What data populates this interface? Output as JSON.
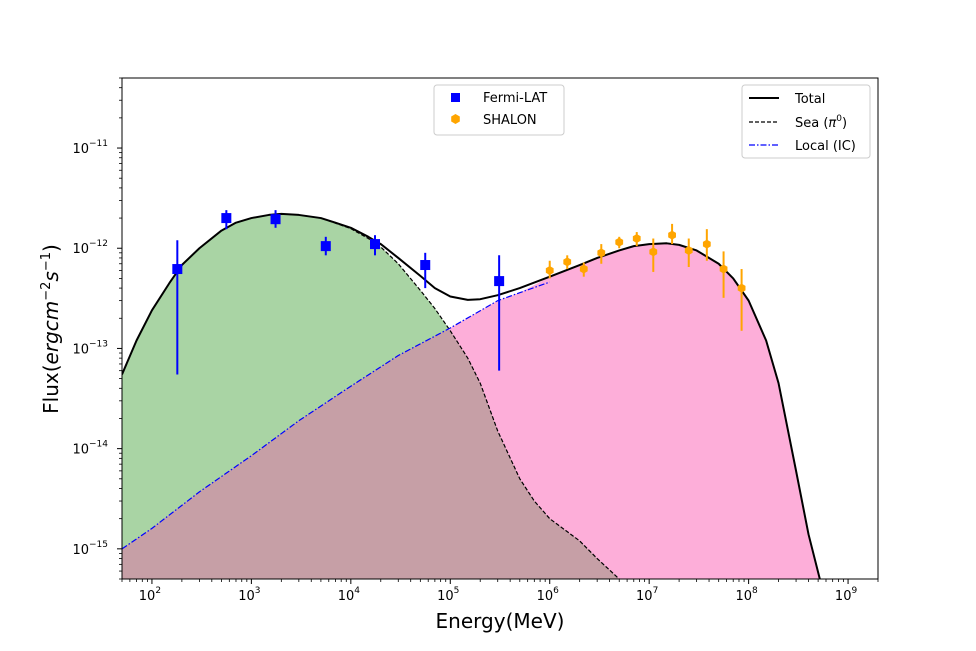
{
  "chart_data": {
    "type": "line",
    "x_scale": "log",
    "y_scale": "log",
    "xlim": [
      50,
      2000000000.0
    ],
    "ylim": [
      5e-16,
      5e-11
    ],
    "xlabel": {
      "base": "Energy",
      "unit": "(MeV)"
    },
    "ylabel": {
      "base": "Flux",
      "unit_open": "(",
      "unit_italic": "ergcm",
      "sup1": "−2",
      "s": "s",
      "sup2": "−1",
      "unit_close": ")"
    },
    "x_ticks": [
      {
        "value": 100,
        "base": "10",
        "exp": "2"
      },
      {
        "value": 1000,
        "base": "10",
        "exp": "3"
      },
      {
        "value": 10000,
        "base": "10",
        "exp": "4"
      },
      {
        "value": 100000,
        "base": "10",
        "exp": "5"
      },
      {
        "value": 1000000,
        "base": "10",
        "exp": "6"
      },
      {
        "value": 10000000,
        "base": "10",
        "exp": "7"
      },
      {
        "value": 100000000,
        "base": "10",
        "exp": "8"
      },
      {
        "value": 1000000000,
        "base": "10",
        "exp": "9"
      }
    ],
    "y_ticks": [
      {
        "value": 1e-15,
        "base": "10",
        "exp": "−15"
      },
      {
        "value": 1e-14,
        "base": "10",
        "exp": "−14"
      },
      {
        "value": 1e-13,
        "base": "10",
        "exp": "−13"
      },
      {
        "value": 1e-12,
        "base": "10",
        "exp": "−12"
      },
      {
        "value": 1e-11,
        "base": "10",
        "exp": "−11"
      }
    ],
    "curves": [
      {
        "name": "Total",
        "color": "#000000",
        "style": "solid",
        "points": [
          [
            50,
            5.5e-14
          ],
          [
            70,
            1.2e-13
          ],
          [
            100,
            2.4e-13
          ],
          [
            150,
            4.5e-13
          ],
          [
            200,
            6.8e-13
          ],
          [
            300,
            1e-12
          ],
          [
            500,
            1.5e-12
          ],
          [
            700,
            1.8e-12
          ],
          [
            1000,
            2e-12
          ],
          [
            1500,
            2.15e-12
          ],
          [
            2000,
            2.2e-12
          ],
          [
            3000,
            2.15e-12
          ],
          [
            5000,
            2e-12
          ],
          [
            7000,
            1.8e-12
          ],
          [
            10000,
            1.6e-12
          ],
          [
            15000,
            1.3e-12
          ],
          [
            20000,
            1.1e-12
          ],
          [
            30000,
            8e-13
          ],
          [
            50000,
            5.3e-13
          ],
          [
            70000,
            4e-13
          ],
          [
            100000,
            3.3e-13
          ],
          [
            150000,
            3.05e-13
          ],
          [
            200000,
            3.1e-13
          ],
          [
            300000,
            3.4e-13
          ],
          [
            500000,
            4e-13
          ],
          [
            1000000,
            5.2e-13
          ],
          [
            2000000,
            6.8e-13
          ],
          [
            3000000,
            8e-13
          ],
          [
            5000000,
            9.5e-13
          ],
          [
            7000000,
            1.05e-12
          ],
          [
            10000000,
            1.1e-12
          ],
          [
            15000000,
            1.12e-12
          ],
          [
            20000000,
            1.08e-12
          ],
          [
            30000000,
            9.5e-13
          ],
          [
            50000000,
            7e-13
          ],
          [
            70000000,
            5e-13
          ],
          [
            100000000,
            3e-13
          ],
          [
            150000000,
            1.2e-13
          ],
          [
            200000000,
            4.5e-14
          ],
          [
            300000000,
            6e-15
          ],
          [
            400000000,
            1.4e-15
          ],
          [
            520000000,
            5e-16
          ]
        ]
      },
      {
        "name": "Sea (π⁰)",
        "color": "#000000",
        "style": "dashed",
        "points": [
          [
            1500,
            2.15e-12
          ],
          [
            2000,
            2.2e-12
          ],
          [
            3000,
            2.15e-12
          ],
          [
            5000,
            2e-12
          ],
          [
            7000,
            1.78e-12
          ],
          [
            10000,
            1.57e-12
          ],
          [
            15000,
            1.25e-12
          ],
          [
            20000,
            1.03e-12
          ],
          [
            30000,
            7e-13
          ],
          [
            50000,
            3.8e-13
          ],
          [
            70000,
            2.5e-13
          ],
          [
            100000,
            1.5e-13
          ],
          [
            150000,
            8e-14
          ],
          [
            200000,
            4.5e-14
          ],
          [
            300000,
            1.5e-14
          ],
          [
            500000,
            5e-15
          ],
          [
            700000,
            3e-15
          ],
          [
            1000000,
            2e-15
          ],
          [
            2000000,
            1.2e-15
          ],
          [
            3000000,
            8e-16
          ],
          [
            5000000,
            5e-16
          ]
        ]
      },
      {
        "name": "Local (IC)",
        "color": "#0000ff",
        "style": "dashdot",
        "points": [
          [
            50,
            1e-15
          ],
          [
            100,
            1.6e-15
          ],
          [
            300,
            3.7e-15
          ],
          [
            1000,
            8.5e-15
          ],
          [
            3000,
            1.9e-14
          ],
          [
            10000,
            4.2e-14
          ],
          [
            30000,
            8.5e-14
          ],
          [
            100000,
            1.6e-13
          ],
          [
            300000,
            3e-13
          ],
          [
            500000,
            3.6e-13
          ],
          [
            1000000,
            4.6e-13
          ]
        ]
      }
    ],
    "fills": [
      {
        "name": "sea-fill",
        "color": "#a9d4a4",
        "points": [
          [
            50,
            5.5e-14
          ],
          [
            70,
            1.2e-13
          ],
          [
            100,
            2.4e-13
          ],
          [
            150,
            4.5e-13
          ],
          [
            200,
            6.8e-13
          ],
          [
            300,
            1e-12
          ],
          [
            500,
            1.5e-12
          ],
          [
            700,
            1.8e-12
          ],
          [
            1000,
            2e-12
          ],
          [
            1500,
            2.15e-12
          ],
          [
            2000,
            2.2e-12
          ],
          [
            3000,
            2.15e-12
          ],
          [
            5000,
            2e-12
          ],
          [
            7000,
            1.78e-12
          ],
          [
            10000,
            1.57e-12
          ],
          [
            15000,
            1.25e-12
          ],
          [
            20000,
            1.03e-12
          ],
          [
            30000,
            7e-13
          ],
          [
            50000,
            3.8e-13
          ],
          [
            70000,
            2.5e-13
          ],
          [
            100000,
            1.5e-13
          ],
          [
            150000,
            8e-14
          ],
          [
            200000,
            4.5e-14
          ],
          [
            300000,
            1.5e-14
          ],
          [
            500000,
            5e-15
          ],
          [
            700000,
            3e-15
          ],
          [
            1000000,
            2e-15
          ],
          [
            2000000,
            1.2e-15
          ],
          [
            3000000,
            8e-16
          ],
          [
            5000000,
            5e-16
          ]
        ]
      },
      {
        "name": "ic-fill",
        "color": "#fdaed9",
        "points": [
          [
            50,
            1e-15
          ],
          [
            100,
            1.6e-15
          ],
          [
            300,
            3.7e-15
          ],
          [
            1000,
            8.5e-15
          ],
          [
            3000,
            1.9e-14
          ],
          [
            10000,
            4.2e-14
          ],
          [
            30000,
            8.5e-14
          ],
          [
            100000,
            1.6e-13
          ],
          [
            300000,
            3e-13
          ],
          [
            500000,
            3.6e-13
          ],
          [
            1000000,
            5.2e-13
          ],
          [
            2000000,
            6.8e-13
          ],
          [
            3000000,
            8e-13
          ],
          [
            5000000,
            9.5e-13
          ],
          [
            7000000,
            1.05e-12
          ],
          [
            10000000,
            1.1e-12
          ],
          [
            15000000,
            1.12e-12
          ],
          [
            20000000,
            1.08e-12
          ],
          [
            30000000,
            9.5e-13
          ],
          [
            50000000,
            7e-13
          ],
          [
            70000000,
            5e-13
          ],
          [
            100000000,
            3e-13
          ],
          [
            150000000,
            1.2e-13
          ],
          [
            200000000,
            4.5e-14
          ],
          [
            300000000,
            6e-15
          ],
          [
            400000000,
            1.4e-15
          ],
          [
            520000000,
            5e-16
          ]
        ]
      }
    ],
    "overlap_color": "#c69fa6",
    "series": [
      {
        "name": "Fermi-LAT",
        "color": "#0000ff",
        "marker": "square",
        "points": [
          {
            "x": 180,
            "y": 6.2e-13,
            "ylo": 5.5e-14,
            "yhi": 1.2e-12
          },
          {
            "x": 560,
            "y": 2e-12,
            "ylo": 1.55e-12,
            "yhi": 2.4e-12
          },
          {
            "x": 1750,
            "y": 1.95e-12,
            "ylo": 1.6e-12,
            "yhi": 2.4e-12
          },
          {
            "x": 5600,
            "y": 1.05e-12,
            "ylo": 8.5e-13,
            "yhi": 1.3e-12
          },
          {
            "x": 17500,
            "y": 1.1e-12,
            "ylo": 8.5e-13,
            "yhi": 1.35e-12
          },
          {
            "x": 56000,
            "y": 6.8e-13,
            "ylo": 4e-13,
            "yhi": 9e-13
          },
          {
            "x": 310000,
            "y": 4.7e-13,
            "ylo": 6e-14,
            "yhi": 8.5e-13
          }
        ]
      },
      {
        "name": "SHALON",
        "color": "#ffa500",
        "marker": "hexagon",
        "points": [
          {
            "x": 1000000,
            "y": 6e-13,
            "ylo": 5e-13,
            "yhi": 7.5e-13
          },
          {
            "x": 1500000,
            "y": 7.3e-13,
            "ylo": 6.2e-13,
            "yhi": 8.5e-13
          },
          {
            "x": 2200000,
            "y": 6.2e-13,
            "ylo": 5.2e-13,
            "yhi": 7.2e-13
          },
          {
            "x": 3300000,
            "y": 9e-13,
            "ylo": 7e-13,
            "yhi": 1.1e-12
          },
          {
            "x": 5000000,
            "y": 1.15e-12,
            "ylo": 1e-12,
            "yhi": 1.3e-12
          },
          {
            "x": 7500000,
            "y": 1.25e-12,
            "ylo": 1.05e-12,
            "yhi": 1.45e-12
          },
          {
            "x": 11000000,
            "y": 9.2e-13,
            "ylo": 5.8e-13,
            "yhi": 1.25e-12
          },
          {
            "x": 17000000,
            "y": 1.35e-12,
            "ylo": 1.1e-12,
            "yhi": 1.75e-12
          },
          {
            "x": 25000000,
            "y": 9.5e-13,
            "ylo": 6.5e-13,
            "yhi": 1.25e-12
          },
          {
            "x": 38000000,
            "y": 1.1e-12,
            "ylo": 7.5e-13,
            "yhi": 1.55e-12
          },
          {
            "x": 56000000,
            "y": 6.2e-13,
            "ylo": 3.2e-13,
            "yhi": 9.3e-13
          },
          {
            "x": 85000000,
            "y": 4e-13,
            "ylo": 1.5e-13,
            "yhi": 6.2e-13
          }
        ]
      }
    ],
    "legend_left": {
      "position": "top-center",
      "entries": [
        "Fermi-LAT",
        "SHALON"
      ]
    },
    "legend_right": {
      "position": "top-right",
      "entries": [
        "Total",
        "Sea (π⁰)",
        "Local (IC)"
      ]
    },
    "legend_labels": {
      "fermi": "Fermi-LAT",
      "shalon": "SHALON",
      "total": "Total",
      "sea_base": "Sea (",
      "sea_pi": "π",
      "sea_sup": "0",
      "sea_close": ")",
      "local": "Local (IC)"
    }
  }
}
